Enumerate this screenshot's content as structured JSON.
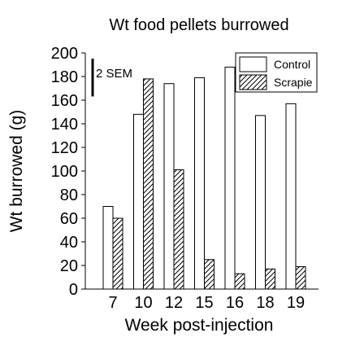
{
  "chart_data": {
    "type": "bar",
    "title": "Wt food pellets burrowed",
    "xlabel": "Week post-injection",
    "ylabel": "Wt burrowed (g)",
    "categories": [
      "7",
      "10",
      "12",
      "15",
      "16",
      "18",
      "19"
    ],
    "ylim": [
      0,
      200
    ],
    "yticks": [
      0,
      20,
      40,
      60,
      80,
      100,
      120,
      140,
      160,
      180,
      200
    ],
    "grid": false,
    "legend_position": "top-right",
    "series": [
      {
        "name": "Control",
        "values": [
          70,
          148,
          174,
          179,
          188,
          147,
          157
        ],
        "fill": "white"
      },
      {
        "name": "Scrapie",
        "values": [
          60,
          178,
          101,
          25,
          13,
          17,
          19
        ],
        "fill": "hatched"
      }
    ],
    "annotation": "2 SEM",
    "sem_bar_value": 32
  }
}
